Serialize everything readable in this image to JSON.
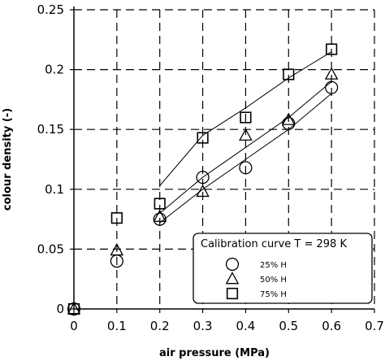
{
  "chart_data": {
    "type": "scatter",
    "xlabel": "air pressure (MPa)",
    "ylabel": "colour density (-)",
    "xlim": [
      0,
      0.7
    ],
    "ylim": [
      0,
      0.25
    ],
    "xticks": [
      "0",
      "0.1",
      "0.2",
      "0.3",
      "0.4",
      "0.5",
      "0.6",
      "0.7"
    ],
    "yticks": [
      "0",
      "0.05",
      "0.1",
      "0.15",
      "0.2",
      "0.25"
    ],
    "grid": true,
    "grid_style": "dashed",
    "legend_position": "bottom-right",
    "legend_title": "Calibration curve T = 298 K",
    "series": [
      {
        "name": "25% H",
        "marker": "circle",
        "x": [
          0,
          0.1,
          0.2,
          0.3,
          0.4,
          0.5,
          0.6
        ],
        "y": [
          0,
          0.04,
          0.075,
          0.11,
          0.118,
          0.155,
          0.185
        ],
        "curve": {
          "x": [
            0.2,
            0.3,
            0.4,
            0.5,
            0.6
          ],
          "y": [
            0.072,
            0.1,
            0.125,
            0.15,
            0.18
          ]
        }
      },
      {
        "name": "50% H",
        "marker": "triangle",
        "x": [
          0,
          0.1,
          0.2,
          0.3,
          0.4,
          0.5,
          0.6
        ],
        "y": [
          0,
          0.049,
          0.077,
          0.098,
          0.145,
          0.158,
          0.196
        ],
        "curve": {
          "x": [
            0.2,
            0.3,
            0.4,
            0.5,
            0.6
          ],
          "y": [
            0.08,
            0.11,
            0.135,
            0.16,
            0.19
          ]
        }
      },
      {
        "name": "75% H",
        "marker": "square",
        "x": [
          0,
          0.1,
          0.2,
          0.3,
          0.4,
          0.5,
          0.6
        ],
        "y": [
          0,
          0.076,
          0.088,
          0.143,
          0.16,
          0.196,
          0.217
        ],
        "curve": {
          "x": [
            0.2,
            0.3,
            0.4,
            0.5,
            0.6
          ],
          "y": [
            0.103,
            0.145,
            0.168,
            0.193,
            0.215
          ]
        }
      }
    ]
  }
}
